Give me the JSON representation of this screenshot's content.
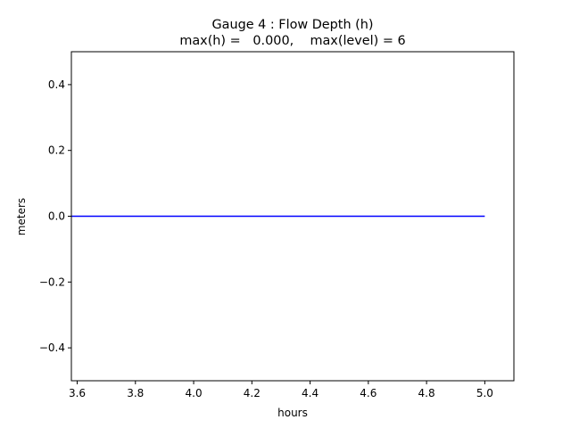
{
  "chart_data": {
    "type": "line",
    "title_line1": "Gauge 4 : Flow Depth (h)",
    "title_line2": "max(h) =   0.000,    max(level) = 6",
    "xlabel": "hours",
    "ylabel": "meters",
    "xlim": [
      3.58,
      5.1
    ],
    "ylim": [
      -0.5,
      0.5
    ],
    "xticks": [
      3.6,
      3.8,
      4.0,
      4.2,
      4.4,
      4.6,
      4.8,
      5.0
    ],
    "xtick_labels": [
      "3.6",
      "3.8",
      "4.0",
      "4.2",
      "4.4",
      "4.6",
      "4.8",
      "5.0"
    ],
    "yticks": [
      -0.4,
      -0.2,
      0.0,
      0.2,
      0.4
    ],
    "ytick_labels": [
      "−0.4",
      "−0.2",
      "0.0",
      "0.2",
      "0.4"
    ],
    "grid": false,
    "series": [
      {
        "color": "#0000ff",
        "x": [
          3.58,
          5.0
        ],
        "y": [
          0.0,
          0.0
        ]
      }
    ]
  }
}
